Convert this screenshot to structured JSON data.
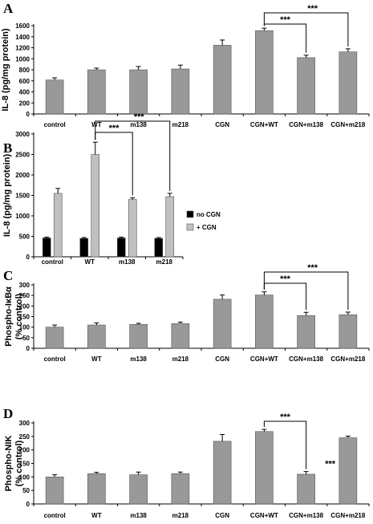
{
  "colors": {
    "bar": "#999999",
    "dark": "#000000",
    "light": "#c0c0c0",
    "axis": "#000000"
  },
  "chart_data": [
    {
      "type": "bar",
      "panel": "A",
      "ylabel": "IL-8 (pg/mg protein)",
      "ylim": [
        0,
        1600
      ],
      "yticks": [
        0,
        200,
        400,
        600,
        800,
        1000,
        1200,
        1400,
        1600
      ],
      "categories": [
        "control",
        "WT",
        "m138",
        "m218",
        "CGN",
        "CGN+WT",
        "CGN+m138",
        "CGN+m218"
      ],
      "series": [
        {
          "values": [
            615,
            800,
            800,
            815,
            1245,
            1510,
            1020,
            1125
          ],
          "errors": [
            40,
            30,
            60,
            70,
            95,
            45,
            45,
            55
          ]
        }
      ],
      "significance": [
        {
          "from": 5,
          "to": 6,
          "label": "***"
        },
        {
          "from": 5,
          "to": 7,
          "label": "***"
        }
      ]
    },
    {
      "type": "bar",
      "panel": "B",
      "ylabel": "IL-8 (pg/mg protein)",
      "ylim": [
        0,
        3000
      ],
      "yticks": [
        0,
        500,
        1000,
        1500,
        2000,
        2500,
        3000
      ],
      "categories": [
        "control",
        "WT",
        "m138",
        "m218"
      ],
      "series": [
        {
          "name": "no CGN",
          "values": [
            460,
            450,
            460,
            450
          ],
          "errors": [
            20,
            20,
            20,
            20
          ]
        },
        {
          "name": "+ CGN",
          "values": [
            1550,
            2500,
            1400,
            1470
          ],
          "errors": [
            120,
            300,
            40,
            80
          ]
        }
      ],
      "legend": "right",
      "significance": [
        {
          "from": 1,
          "to": 2,
          "label": "***"
        },
        {
          "from": 1,
          "to": 3,
          "label": "***"
        }
      ]
    },
    {
      "type": "bar",
      "panel": "C",
      "ylabel": [
        "Phospho-IκBα",
        "(% control)"
      ],
      "ylim": [
        0,
        300
      ],
      "yticks": [
        0,
        50,
        100,
        150,
        200,
        250,
        300
      ],
      "categories": [
        "control",
        "WT",
        "m138",
        "m218",
        "CGN",
        "CGN+WT",
        "CGN+m138",
        "CGN+m218"
      ],
      "series": [
        {
          "values": [
            100,
            110,
            113,
            117,
            232,
            252,
            155,
            159
          ],
          "errors": [
            10,
            10,
            5,
            7,
            20,
            15,
            15,
            12
          ]
        }
      ],
      "significance": [
        {
          "from": 5,
          "to": 6,
          "label": "***"
        },
        {
          "from": 5,
          "to": 7,
          "label": "***"
        }
      ]
    },
    {
      "type": "bar",
      "panel": "D",
      "ylabel": [
        "Phospho-NIK",
        "(% control)"
      ],
      "ylim": [
        0,
        300
      ],
      "yticks": [
        0,
        50,
        100,
        150,
        200,
        250,
        300
      ],
      "categories": [
        "control",
        "WT",
        "m138",
        "m218",
        "CGN",
        "CGN+WT",
        "CGN+m138",
        "CGN+m218"
      ],
      "series": [
        {
          "values": [
            100,
            112,
            108,
            112,
            232,
            268,
            110,
            245
          ],
          "errors": [
            8,
            5,
            10,
            6,
            25,
            8,
            10,
            6
          ]
        }
      ],
      "significance": [
        {
          "from": 5,
          "to": 6,
          "label": "***"
        }
      ],
      "annotations": [
        {
          "category": 6,
          "label": "***"
        }
      ]
    }
  ]
}
